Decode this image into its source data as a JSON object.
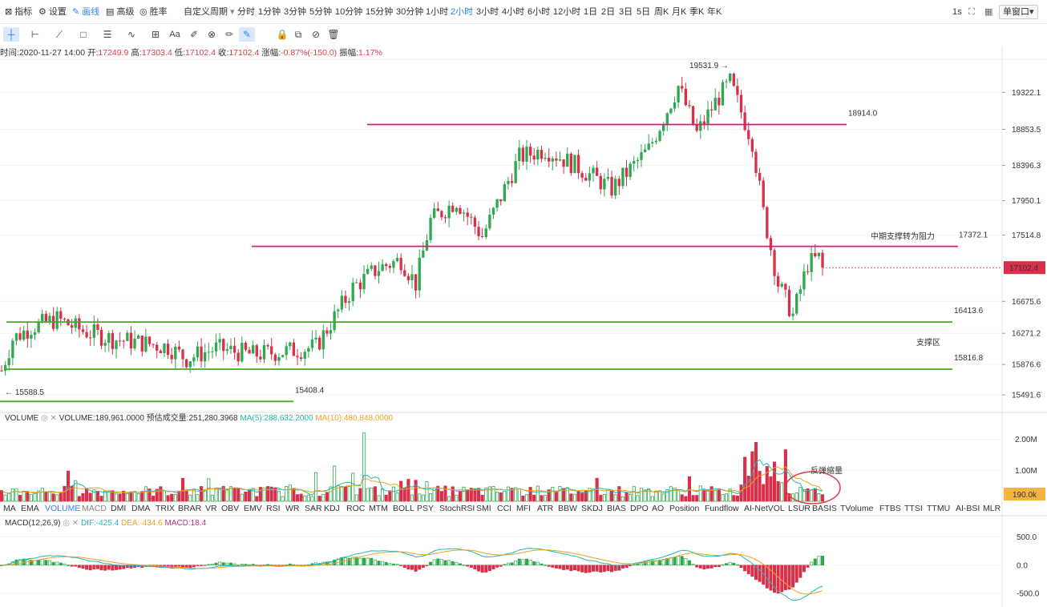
{
  "toolbar": {
    "left": [
      {
        "icon": "indicator-icon",
        "label": "指标"
      },
      {
        "icon": "gear-icon",
        "label": "设置"
      },
      {
        "icon": "pen-icon",
        "label": "画线"
      },
      {
        "icon": "printer-icon",
        "label": "高级"
      },
      {
        "icon": "target-icon",
        "label": "胜率"
      }
    ],
    "custom_period": "自定义周期",
    "periods": [
      "分时",
      "1分钟",
      "3分钟",
      "5分钟",
      "10分钟",
      "15分钟",
      "30分钟",
      "1小时",
      "2小时",
      "3小时",
      "4小时",
      "6小时",
      "12小时",
      "1日",
      "2日",
      "3日",
      "5日",
      "周K",
      "月K",
      "季K",
      "年K"
    ],
    "selected_period": "2小时",
    "refresh": "1s",
    "window_mode": "单窗口"
  },
  "info": {
    "time_label": "时间:",
    "time": "2020-11-27 14:00",
    "open_label": "开:",
    "open": "17249.9",
    "high_label": "高:",
    "high": "17303.4",
    "low_label": "低:",
    "low": "17102.4",
    "close_label": "收:",
    "close": "17102.4",
    "change_label": "涨幅:",
    "change": "-0.87%(-150.0)",
    "amp_label": "振幅:",
    "amp": "1.17%"
  },
  "volume_legend": {
    "name": "VOLUME",
    "value": "VOLUME:189,961.0000",
    "estimate": "预估成交量:251,280.3968",
    "ma5": "MA(5):288,632.2000",
    "ma10": "MA(10):480,848.0000"
  },
  "macd_legend": {
    "name": "MACD(12,26,9)",
    "dif": "DIF:-425.4",
    "dea": "DEA:-434.6",
    "macd": "MACD:18.4"
  },
  "indicators": [
    "MA",
    "EMA",
    "VOLUME",
    "MACD",
    "DMI",
    "DMA",
    "TRIX",
    "BRAR",
    "VR",
    "OBV",
    "EMV",
    "RSI",
    "WR",
    "SAR",
    "KDJ",
    "ROC",
    "MTM",
    "BOLL",
    "PSY",
    "StochRSI",
    "SMI",
    "CCI",
    "MFI",
    "ATR",
    "BBW",
    "SKDJ",
    "BIAS",
    "DPO",
    "AO",
    "Position",
    "Fundflow",
    "AI-NetVOL",
    "LSUR",
    "BASIS",
    "TVolume",
    "FTBS",
    "TTSI",
    "TTMU",
    "AI-BSI",
    "MLR"
  ],
  "selected_indicator": "VOLUME",
  "chart_data": [
    {
      "type": "candlestick",
      "price_axis_ticks": [
        "19322.1",
        "18853.5",
        "18396.3",
        "17950.1",
        "17514.8",
        "16675.6",
        "16271.2",
        "15876.6",
        "15491.6"
      ],
      "ylim": [
        15300,
        19700
      ],
      "last_price_label": "17102.4",
      "high_marker": "19531.9",
      "low_marker": "15588.5",
      "annotations": {
        "level_top": "18914.0",
        "level_mid": "17372.1",
        "level_mid_text": "中期支撑转为阻力",
        "level_support_high": "16413.6",
        "level_support_low": "15816.8",
        "support_zone_text": "支撑区",
        "level_bottom": "15408.4"
      },
      "colors": {
        "up": "#2fa84f",
        "down": "#d9304a",
        "level_mid": "#cc2277",
        "level_support": "#4aa62c",
        "annotation_text": "#e03a4a"
      }
    },
    {
      "type": "bar",
      "series": "volume",
      "axis_ticks": [
        "2.00M",
        "1.00M"
      ],
      "ylim": [
        0,
        2400000
      ],
      "last_value_label": "190.0k",
      "annotation_text": "反弹缩量"
    },
    {
      "type": "bar",
      "series": "macd",
      "axis_ticks": [
        "500.0",
        "0.0",
        "-500.0"
      ],
      "ylim": [
        -600,
        650
      ]
    }
  ]
}
